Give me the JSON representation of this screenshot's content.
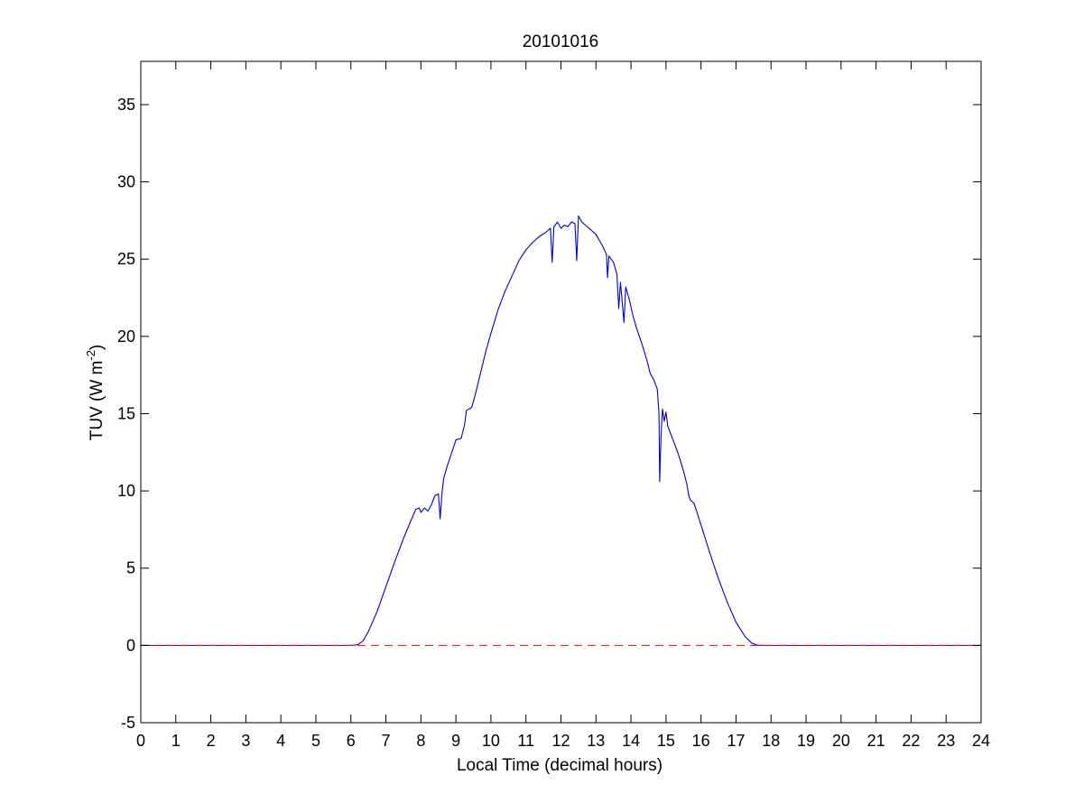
{
  "chart_data": {
    "type": "line",
    "title": "20101016",
    "xlabel": "Local Time (decimal hours)",
    "ylabel": {
      "text": "TUV (W m",
      "sup": "-2",
      "close": ")"
    },
    "xlim": [
      0,
      24
    ],
    "ylim": [
      -5,
      37.8
    ],
    "xticks": [
      0,
      1,
      2,
      3,
      4,
      5,
      6,
      7,
      8,
      9,
      10,
      11,
      12,
      13,
      14,
      15,
      16,
      17,
      18,
      19,
      20,
      21,
      22,
      23,
      24
    ],
    "yticks": [
      -5,
      0,
      5,
      10,
      15,
      20,
      25,
      30,
      35
    ],
    "grid": false,
    "legend": "none",
    "colors": {
      "series": "#0000c8",
      "baseline": "#ff0000",
      "axes": "#000000"
    },
    "series": [
      {
        "line_style": "solid",
        "color": "#0000c8",
        "points": [
          [
            0,
            0
          ],
          [
            6.0,
            0
          ],
          [
            6.2,
            0.05
          ],
          [
            6.35,
            0.3
          ],
          [
            6.5,
            0.9
          ],
          [
            6.75,
            2.2
          ],
          [
            7.0,
            3.8
          ],
          [
            7.25,
            5.4
          ],
          [
            7.5,
            6.9
          ],
          [
            7.7,
            8.0
          ],
          [
            7.85,
            8.8
          ],
          [
            7.95,
            8.9
          ],
          [
            8.0,
            8.6
          ],
          [
            8.1,
            8.9
          ],
          [
            8.2,
            8.7
          ],
          [
            8.3,
            9.1
          ],
          [
            8.4,
            9.7
          ],
          [
            8.5,
            9.8
          ],
          [
            8.55,
            8.2
          ],
          [
            8.6,
            9.8
          ],
          [
            8.65,
            10.8
          ],
          [
            8.75,
            11.6
          ],
          [
            8.9,
            12.6
          ],
          [
            9.0,
            13.3
          ],
          [
            9.15,
            13.4
          ],
          [
            9.25,
            14.3
          ],
          [
            9.3,
            15.2
          ],
          [
            9.45,
            15.4
          ],
          [
            9.55,
            16.2
          ],
          [
            9.7,
            17.6
          ],
          [
            9.85,
            19.0
          ],
          [
            10.0,
            20.2
          ],
          [
            10.2,
            21.7
          ],
          [
            10.4,
            22.9
          ],
          [
            10.6,
            23.9
          ],
          [
            10.8,
            24.9
          ],
          [
            11.0,
            25.6
          ],
          [
            11.2,
            26.1
          ],
          [
            11.4,
            26.5
          ],
          [
            11.55,
            26.7
          ],
          [
            11.7,
            27.0
          ],
          [
            11.75,
            24.8
          ],
          [
            11.8,
            27.1
          ],
          [
            11.9,
            27.4
          ],
          [
            12.0,
            27.0
          ],
          [
            12.1,
            27.2
          ],
          [
            12.2,
            27.1
          ],
          [
            12.3,
            27.4
          ],
          [
            12.4,
            27.3
          ],
          [
            12.45,
            24.9
          ],
          [
            12.5,
            27.8
          ],
          [
            12.6,
            27.4
          ],
          [
            12.75,
            27.1
          ],
          [
            12.9,
            26.8
          ],
          [
            13.0,
            26.6
          ],
          [
            13.1,
            26.2
          ],
          [
            13.2,
            25.8
          ],
          [
            13.3,
            25.3
          ],
          [
            13.33,
            23.8
          ],
          [
            13.37,
            25.2
          ],
          [
            13.5,
            24.8
          ],
          [
            13.6,
            24.0
          ],
          [
            13.65,
            21.8
          ],
          [
            13.7,
            23.5
          ],
          [
            13.75,
            22.2
          ],
          [
            13.8,
            20.9
          ],
          [
            13.85,
            23.2
          ],
          [
            13.95,
            22.4
          ],
          [
            14.05,
            21.4
          ],
          [
            14.15,
            20.6
          ],
          [
            14.3,
            19.6
          ],
          [
            14.45,
            18.5
          ],
          [
            14.55,
            17.6
          ],
          [
            14.65,
            17.2
          ],
          [
            14.75,
            16.6
          ],
          [
            14.8,
            15.0
          ],
          [
            14.82,
            10.6
          ],
          [
            14.86,
            13.6
          ],
          [
            14.9,
            15.3
          ],
          [
            14.95,
            14.5
          ],
          [
            15.0,
            15.1
          ],
          [
            15.05,
            14.2
          ],
          [
            15.2,
            13.3
          ],
          [
            15.35,
            12.4
          ],
          [
            15.5,
            11.3
          ],
          [
            15.6,
            10.4
          ],
          [
            15.65,
            9.7
          ],
          [
            15.7,
            9.4
          ],
          [
            15.8,
            9.2
          ],
          [
            16.0,
            7.8
          ],
          [
            16.25,
            6.0
          ],
          [
            16.5,
            4.3
          ],
          [
            16.75,
            2.8
          ],
          [
            17.0,
            1.5
          ],
          [
            17.25,
            0.6
          ],
          [
            17.45,
            0.15
          ],
          [
            17.6,
            0.02
          ],
          [
            17.8,
            0
          ],
          [
            24,
            0
          ]
        ]
      },
      {
        "line_style": "dashed",
        "color": "#ff0000",
        "points": [
          [
            0,
            0
          ],
          [
            24,
            0
          ]
        ]
      }
    ]
  }
}
